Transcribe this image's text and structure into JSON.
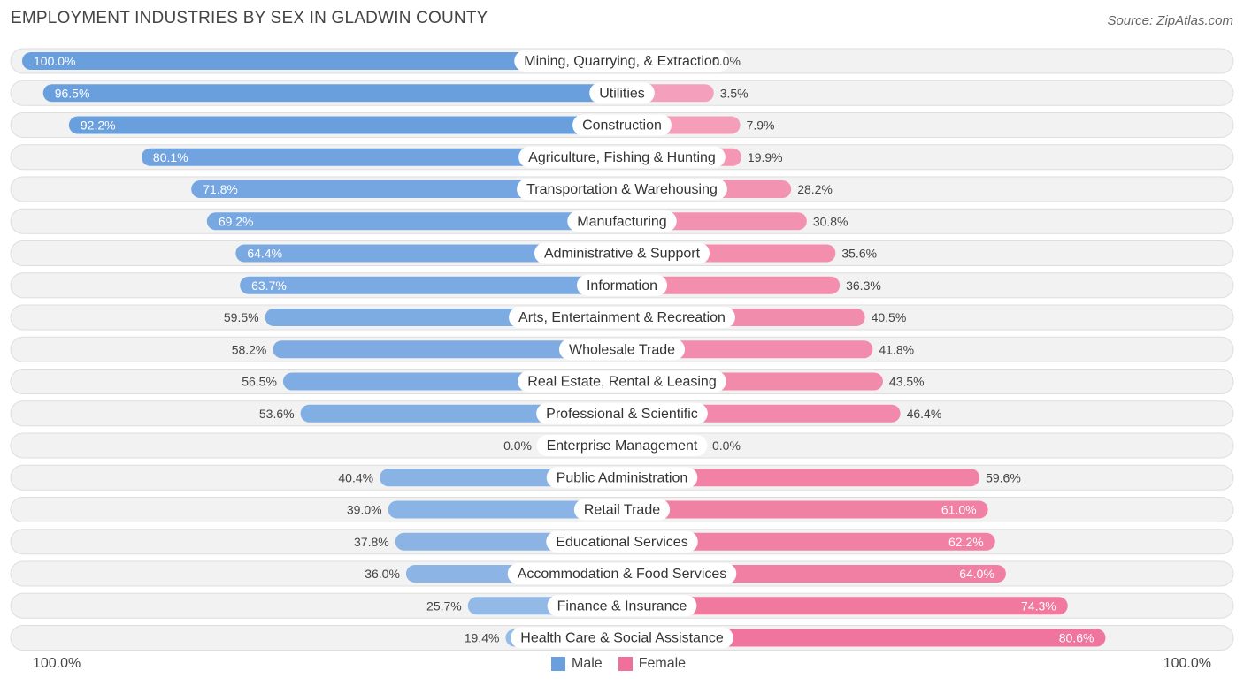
{
  "title": "EMPLOYMENT INDUSTRIES BY SEX IN GLADWIN COUNTY",
  "source": "Source: ZipAtlas.com",
  "legend": {
    "male": "Male",
    "female": "Female",
    "axis_left": "100.0%",
    "axis_right": "100.0%"
  },
  "colors": {
    "male": "#6a9fde",
    "male_light": "#a9c8ec",
    "female": "#f0709a",
    "female_light": "#f5a8c1",
    "row_bg": "#f2f2f2",
    "row_border": "#dedede"
  },
  "chart_data": {
    "type": "bar",
    "orientation": "horizontal-diverging",
    "title": "EMPLOYMENT INDUSTRIES BY SEX IN GLADWIN COUNTY",
    "xlim": [
      -100,
      100
    ],
    "categories": [
      "Mining, Quarrying, & Extraction",
      "Utilities",
      "Construction",
      "Agriculture, Fishing & Hunting",
      "Transportation & Warehousing",
      "Manufacturing",
      "Administrative & Support",
      "Information",
      "Arts, Entertainment & Recreation",
      "Wholesale Trade",
      "Real Estate, Rental & Leasing",
      "Professional & Scientific",
      "Enterprise Management",
      "Public Administration",
      "Retail Trade",
      "Educational Services",
      "Accommodation & Food Services",
      "Finance & Insurance",
      "Health Care & Social Assistance"
    ],
    "series": [
      {
        "name": "Male",
        "values": [
          100.0,
          96.5,
          92.2,
          80.1,
          71.8,
          69.2,
          64.4,
          63.7,
          59.5,
          58.2,
          56.5,
          53.6,
          0.0,
          40.4,
          39.0,
          37.8,
          36.0,
          25.7,
          19.4
        ],
        "labels": [
          "100.0%",
          "96.5%",
          "92.2%",
          "80.1%",
          "71.8%",
          "69.2%",
          "64.4%",
          "63.7%",
          "59.5%",
          "58.2%",
          "56.5%",
          "53.6%",
          "0.0%",
          "40.4%",
          "39.0%",
          "37.8%",
          "36.0%",
          "25.7%",
          "19.4%"
        ]
      },
      {
        "name": "Female",
        "values": [
          0.0,
          3.5,
          7.9,
          19.9,
          28.2,
          30.8,
          35.6,
          36.3,
          40.5,
          41.8,
          43.5,
          46.4,
          0.0,
          59.6,
          61.0,
          62.2,
          64.0,
          74.3,
          80.6
        ],
        "labels": [
          "0.0%",
          "3.5%",
          "7.9%",
          "19.9%",
          "28.2%",
          "30.8%",
          "35.6%",
          "36.3%",
          "40.5%",
          "41.8%",
          "43.5%",
          "46.4%",
          "0.0%",
          "59.6%",
          "61.0%",
          "62.2%",
          "64.0%",
          "74.3%",
          "80.6%"
        ]
      }
    ]
  }
}
